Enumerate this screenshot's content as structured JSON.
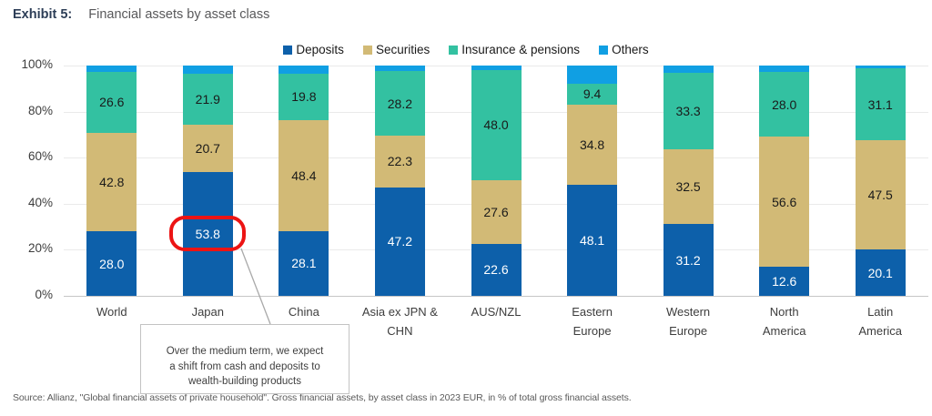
{
  "header": {
    "exhibit_label": "Exhibit 5:",
    "title": "Financial assets by asset class"
  },
  "chart_data": {
    "type": "bar",
    "subtype": "stacked-100-percent",
    "unit": "% of total gross financial assets",
    "legend_position": "top",
    "y_axis": {
      "min": 0,
      "max": 100,
      "grid": true,
      "ticks": [
        "0%",
        "20%",
        "40%",
        "60%",
        "80%",
        "100%"
      ]
    },
    "categories": [
      "World",
      "Japan",
      "China",
      "Asia ex JPN &\nCHN",
      "AUS/NZL",
      "Eastern\nEurope",
      "Western\nEurope",
      "North\nAmerica",
      "Latin\nAmerica"
    ],
    "series": [
      {
        "name": "Deposits",
        "color": "#0d60aa",
        "label_color": "#ffffff",
        "show_labels": true,
        "values": [
          "28.0",
          "53.8",
          "28.1",
          "47.2",
          "22.6",
          "48.1",
          "31.2",
          "12.6",
          "20.1"
        ]
      },
      {
        "name": "Securities",
        "color": "#d2ba76",
        "label_color": "#1a1a1a",
        "show_labels": true,
        "values": [
          "42.8",
          "20.7",
          "48.4",
          "22.3",
          "27.6",
          "34.8",
          "32.5",
          "56.6",
          "47.5"
        ]
      },
      {
        "name": "Insurance & pensions",
        "color": "#33c1a1",
        "label_color": "#1a1a1a",
        "show_labels": true,
        "values": [
          "26.6",
          "21.9",
          "19.8",
          "28.2",
          "48.0",
          "9.4",
          "33.3",
          "28.0",
          "31.1"
        ]
      },
      {
        "name": "Others",
        "color": "#109fe3",
        "label_color": "#1a1a1a",
        "show_labels": false,
        "values": [
          "2.6",
          "3.6",
          "3.7",
          "2.3",
          "1.8",
          "7.7",
          "3.0",
          "2.8",
          "1.3"
        ]
      }
    ],
    "highlight": {
      "category": "Japan",
      "series": "Deposits",
      "value": "53.8",
      "color": "#ec1414"
    }
  },
  "annotation": {
    "text": "Over the medium term, we expect\na shift from cash and deposits to\nwealth-building products"
  },
  "source": "Source: Allianz, \"Global financial assets of private household\". Gross financial assets, by asset class in 2023 EUR, in % of total gross financial assets."
}
